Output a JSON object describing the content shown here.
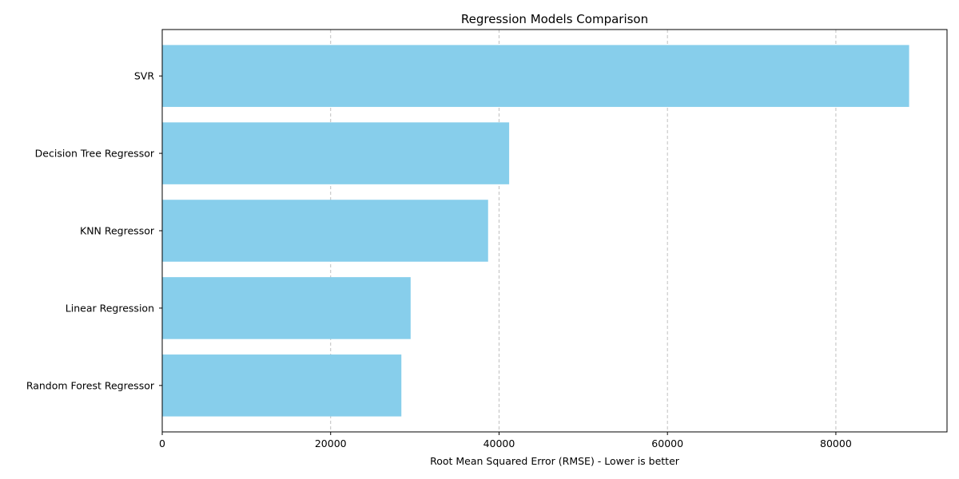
{
  "chart_data": {
    "type": "bar",
    "orientation": "horizontal",
    "title": "Regression Models Comparison",
    "xlabel": "Root Mean Squared Error (RMSE) - Lower is better",
    "ylabel": "",
    "categories": [
      "Random Forest Regressor",
      "Linear Regression",
      "KNN Regressor",
      "Decision Tree Regressor",
      "SVR"
    ],
    "values": [
      28400,
      29500,
      38700,
      41200,
      88700
    ],
    "xlim": [
      0,
      93200
    ],
    "xticks": [
      0,
      20000,
      40000,
      60000,
      80000
    ],
    "xtick_labels": [
      "0",
      "20000",
      "40000",
      "60000",
      "80000"
    ],
    "grid": "x-dashed",
    "bar_color": "#87ceeb",
    "grid_color": "#c0c0c0"
  }
}
